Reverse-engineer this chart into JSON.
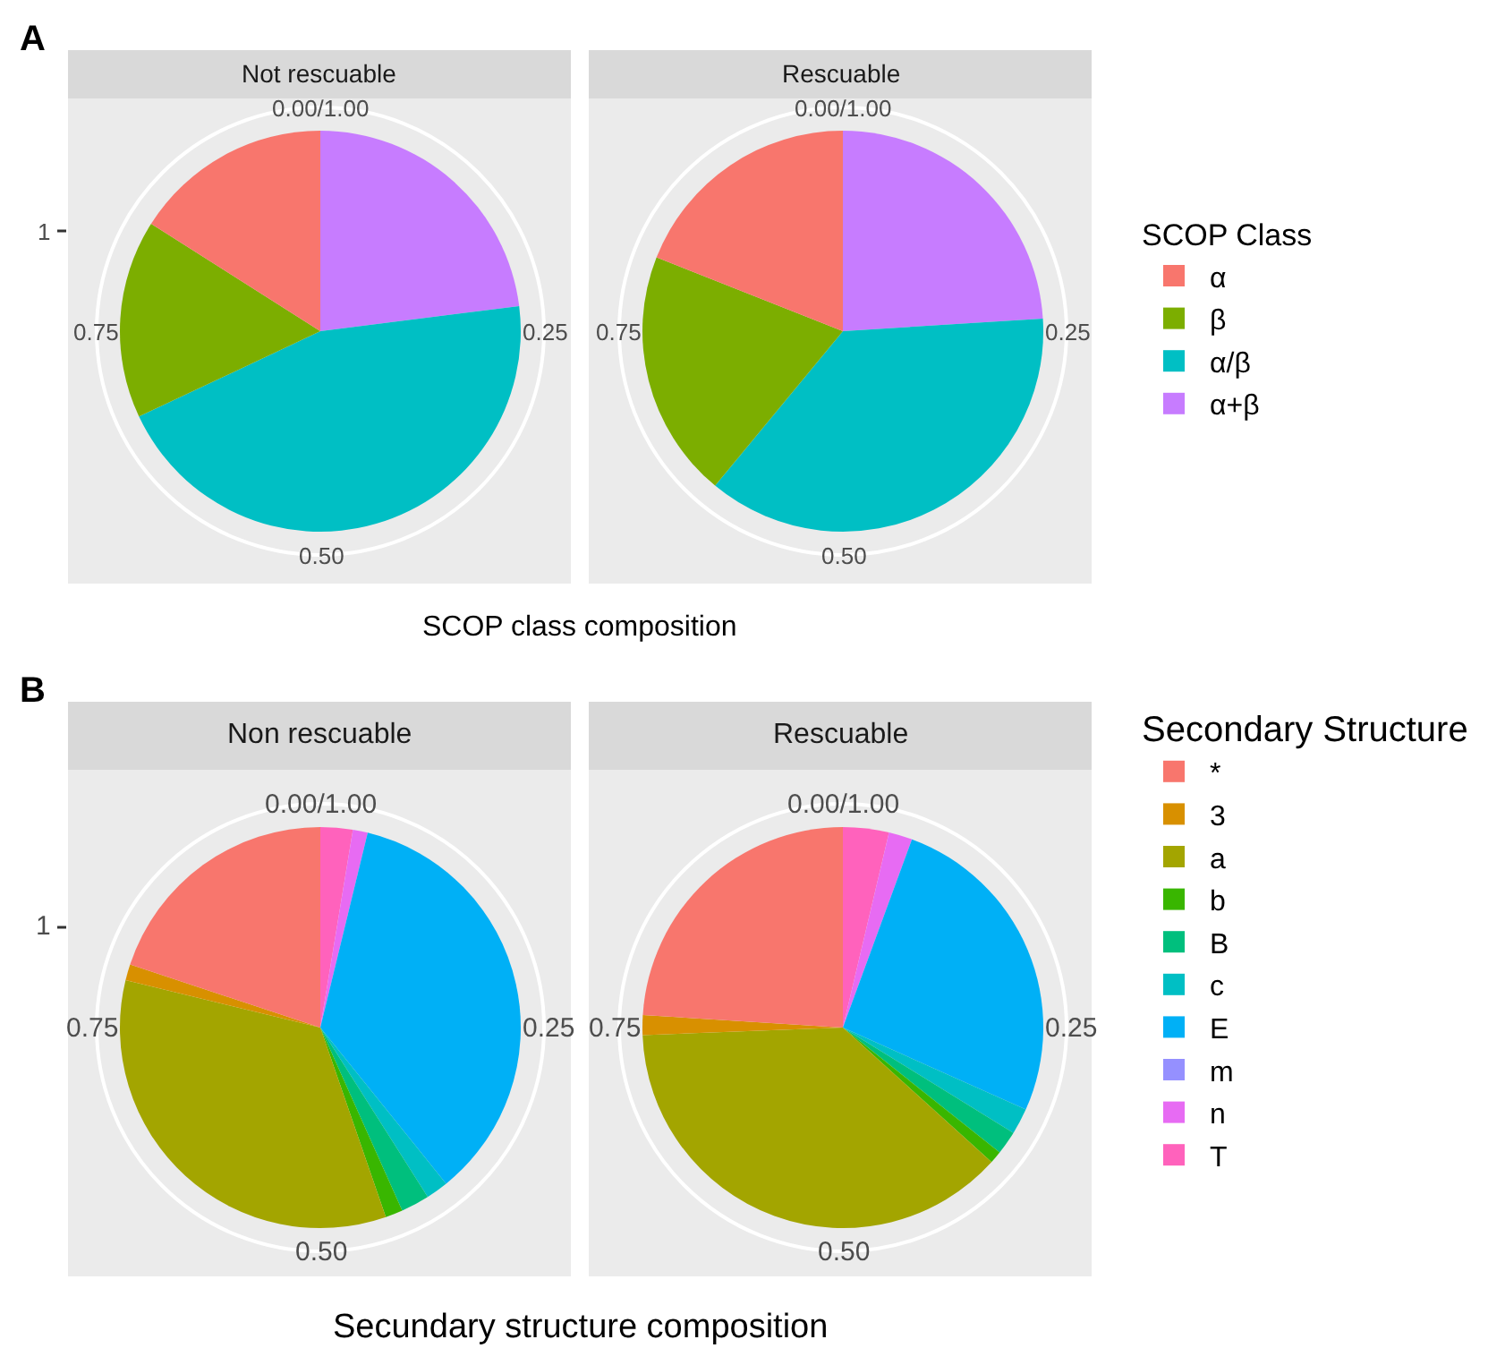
{
  "chart_data": [
    {
      "type": "pie",
      "xlabel": "SCOP class composition",
      "legend_title": "SCOP Class",
      "legend": "right",
      "annotations": [
        "A",
        "0.00/1.00",
        "0.25",
        "0.50",
        "0.75",
        "1"
      ],
      "categories": [
        "α",
        "β",
        "α/β",
        "α+β"
      ],
      "colors": [
        "#f8766d",
        "#7cae00",
        "#00bfc4",
        "#c77cff"
      ],
      "series": [
        {
          "name": "Not rescuable",
          "values": [
            16,
            16,
            45,
            23
          ]
        },
        {
          "name": "Rescuable",
          "values": [
            19,
            20,
            37,
            24
          ]
        }
      ]
    },
    {
      "type": "pie",
      "xlabel": "Secundary structure composition",
      "legend_title": "Secondary Structure",
      "legend": "right",
      "annotations": [
        "B",
        "0.00/1.00",
        "0.25",
        "0.50",
        "0.75",
        "1"
      ],
      "categories": [
        "*",
        "3",
        "a",
        "b",
        "B",
        "c",
        "E",
        "m",
        "n",
        "T"
      ],
      "colors": [
        "#f8766d",
        "#d89000",
        "#a3a500",
        "#39b600",
        "#00bf7d",
        "#00bfc4",
        "#00b0f6",
        "#9590ff",
        "#e76bf3",
        "#ff62bc"
      ],
      "series": [
        {
          "name": "Non rescuable",
          "values": [
            19.9,
            1.3,
            34.1,
            1.4,
            2.3,
            1.8,
            35.4,
            0,
            1.2,
            2.6
          ]
        },
        {
          "name": "Rescuable",
          "values": [
            24.0,
            1.6,
            37.7,
            1.0,
            1.9,
            2.1,
            26.1,
            0,
            1.9,
            3.7
          ]
        }
      ]
    }
  ]
}
